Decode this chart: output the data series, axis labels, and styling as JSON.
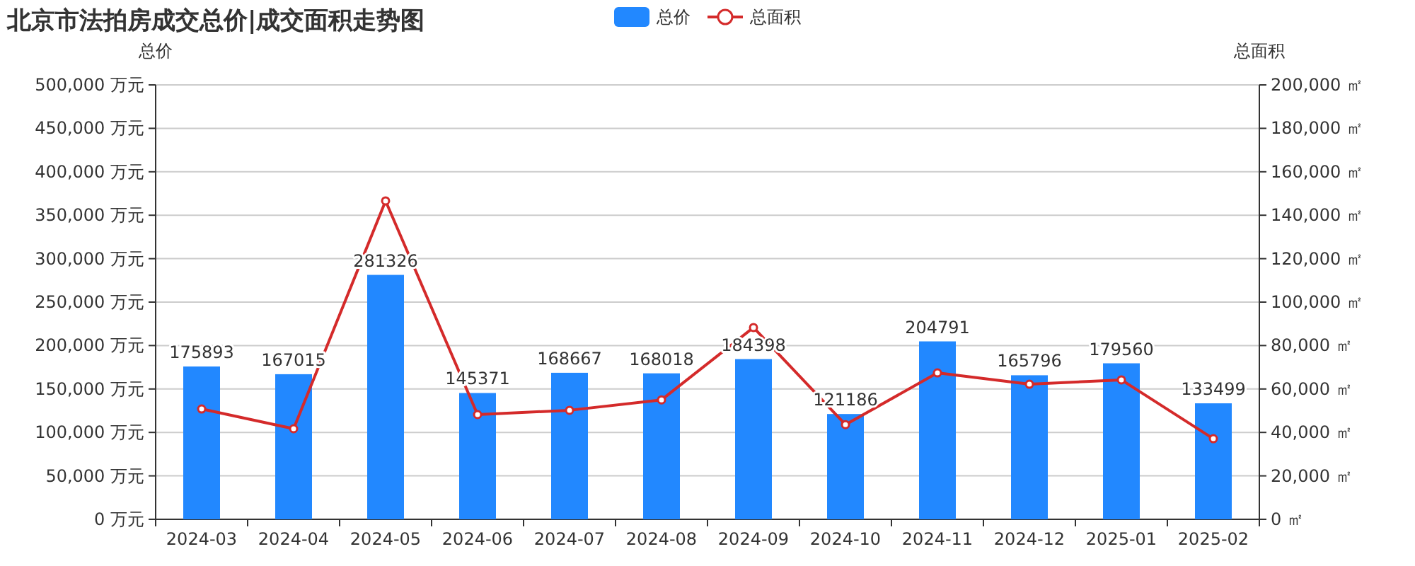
{
  "chart_data": {
    "type": "bar",
    "title": "北京市法拍房成交总价|成交面积走势图",
    "ylabel": "总价",
    "y2label": "总面积",
    "categories": [
      "2024-03",
      "2024-04",
      "2024-05",
      "2024-06",
      "2024-07",
      "2024-08",
      "2024-09",
      "2024-10",
      "2024-11",
      "2024-12",
      "2025-01",
      "2025-02"
    ],
    "series": [
      {
        "name": "总价",
        "color": "#2288ff",
        "values": [
          175893,
          167015,
          281326,
          145371,
          168667,
          168018,
          184398,
          121186,
          204791,
          165796,
          179560,
          133499
        ],
        "value_labels": [
          "175893",
          "167015",
          "281326",
          "145371",
          "168667",
          "168018",
          "184398",
          "121186",
          "204791",
          "165796",
          "179560",
          "133499"
        ]
      },
      {
        "name": "总面积",
        "type": "line",
        "axis": "y2",
        "color": "#d42a2a",
        "marker": "circle",
        "values": [
          50800,
          41700,
          146600,
          48200,
          50200,
          55000,
          88300,
          43600,
          67400,
          62200,
          64200,
          37100
        ]
      }
    ],
    "ylim": [
      0,
      500000
    ],
    "yticks": [
      {
        "value": 0,
        "label": "0 万元"
      },
      {
        "value": 50000,
        "label": "50,000 万元"
      },
      {
        "value": 100000,
        "label": "100,000 万元"
      },
      {
        "value": 150000,
        "label": "150,000 万元"
      },
      {
        "value": 200000,
        "label": "200,000 万元"
      },
      {
        "value": 250000,
        "label": "250,000 万元"
      },
      {
        "value": 300000,
        "label": "300,000 万元"
      },
      {
        "value": 350000,
        "label": "350,000 万元"
      },
      {
        "value": 400000,
        "label": "400,000 万元"
      },
      {
        "value": 450000,
        "label": "450,000 万元"
      },
      {
        "value": 500000,
        "label": "500,000 万元"
      }
    ],
    "y2lim": [
      0,
      200000
    ],
    "y2ticks": [
      {
        "value": 0,
        "label": "0 ㎡"
      },
      {
        "value": 20000,
        "label": "20,000 ㎡"
      },
      {
        "value": 40000,
        "label": "40,000 ㎡"
      },
      {
        "value": 60000,
        "label": "60,000 ㎡"
      },
      {
        "value": 80000,
        "label": "80,000 ㎡"
      },
      {
        "value": 100000,
        "label": "100,000 ㎡"
      },
      {
        "value": 120000,
        "label": "120,000 ㎡"
      },
      {
        "value": 140000,
        "label": "140,000 ㎡"
      },
      {
        "value": 160000,
        "label": "160,000 ㎡"
      },
      {
        "value": 180000,
        "label": "180,000 ㎡"
      },
      {
        "value": 200000,
        "label": "200,000 ㎡"
      }
    ],
    "grid": "y",
    "legend": "top"
  }
}
